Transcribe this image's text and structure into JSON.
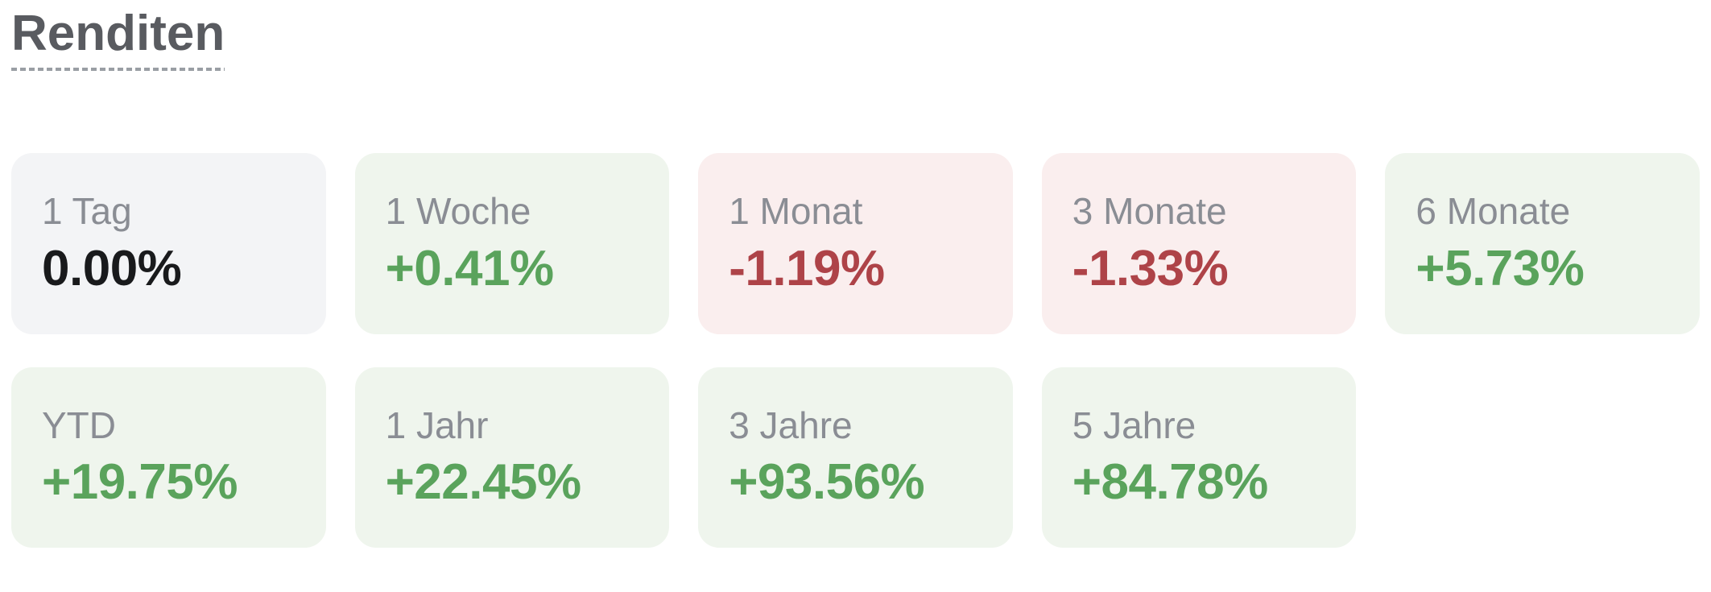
{
  "returns": {
    "heading": "Renditen",
    "cards": [
      {
        "label": "1 Tag",
        "value": "0.00%",
        "trend": "neutral"
      },
      {
        "label": "1 Woche",
        "value": "+0.41%",
        "trend": "positive"
      },
      {
        "label": "1 Monat",
        "value": "-1.19%",
        "trend": "negative"
      },
      {
        "label": "3 Monate",
        "value": "-1.33%",
        "trend": "negative"
      },
      {
        "label": "6 Monate",
        "value": "+5.73%",
        "trend": "positive"
      },
      {
        "label": "YTD",
        "value": "+19.75%",
        "trend": "positive"
      },
      {
        "label": "1 Jahr",
        "value": "+22.45%",
        "trend": "positive"
      },
      {
        "label": "3 Jahre",
        "value": "+93.56%",
        "trend": "positive"
      },
      {
        "label": "5 Jahre",
        "value": "+84.78%",
        "trend": "positive"
      }
    ],
    "colors": {
      "heading": "#595b60",
      "underline": "#9a9ea4",
      "label": "#8a8d94",
      "neutral_text": "#191a1c",
      "neutral_bg": "#f3f4f6",
      "positive_text": "#5aa35c",
      "positive_bg": "#eff5ed",
      "negative_text": "#ae4348",
      "negative_bg": "#faeeee"
    }
  }
}
